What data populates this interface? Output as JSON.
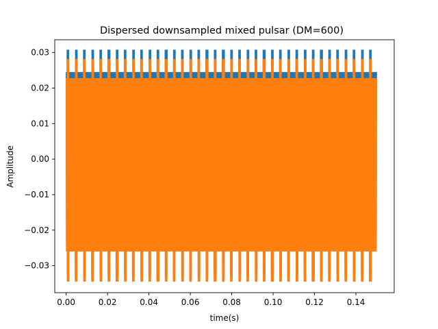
{
  "chart_data": {
    "type": "line",
    "title": "Dispersed downsampled mixed pulsar (DM=600)",
    "xlabel": "time(s)",
    "ylabel": "Amplitude",
    "xlim": [
      -0.0055,
      0.1585
    ],
    "ylim": [
      -0.0376,
      0.0336
    ],
    "xticks": [
      0.0,
      0.02,
      0.04,
      0.06,
      0.08,
      0.1,
      0.12,
      0.14
    ],
    "xtick_labels": [
      "0.00",
      "0.02",
      "0.04",
      "0.06",
      "0.08",
      "0.10",
      "0.12",
      "0.14"
    ],
    "yticks": [
      -0.03,
      -0.02,
      -0.01,
      0.0,
      0.01,
      0.02,
      0.03
    ],
    "ytick_labels": [
      "−0.03",
      "−0.02",
      "−0.01",
      "0.00",
      "0.01",
      "0.02",
      "0.03"
    ],
    "grid": false,
    "legend": "none",
    "x_range": [
      0.0,
      0.15
    ],
    "pulse_count": 38,
    "series": [
      {
        "color": "#1f77b4",
        "baseline_amplitude": [
          -0.0235,
          0.0245
        ],
        "pulse_peak": [
          -0.0328,
          0.0308
        ]
      },
      {
        "color": "#ff7f0e",
        "baseline_amplitude": [
          -0.026,
          0.0228
        ],
        "pulse_peak": [
          -0.0345,
          0.0282
        ]
      }
    ]
  }
}
